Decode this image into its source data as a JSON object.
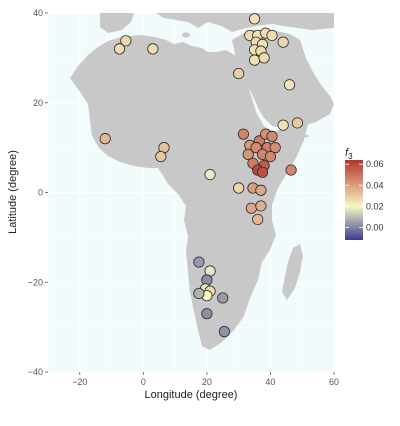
{
  "chart_data": {
    "type": "scatter",
    "xlabel": "Longitude (degree)",
    "ylabel": "Latitude (degree)",
    "xlim": [
      -30,
      60
    ],
    "ylim": [
      -40,
      40
    ],
    "x_ticks": [
      -20,
      0,
      20,
      40,
      60
    ],
    "y_ticks": [
      -40,
      -20,
      0,
      20,
      40
    ],
    "x_tick_labels": [
      "−20",
      "0",
      "20",
      "40",
      "60"
    ],
    "y_tick_labels": [
      "−40",
      "−20",
      "0",
      "20",
      "40"
    ],
    "grid": true,
    "legend": {
      "title": "f",
      "title_subscript": "3",
      "placement": "right",
      "ticks": [
        0.0,
        0.02,
        0.04,
        0.06
      ],
      "tick_labels": [
        "0.00",
        "0.02",
        "0.04",
        "0.06"
      ],
      "range": [
        -0.012,
        0.064
      ]
    },
    "colors": {
      "panel_background": "#f2fbfc",
      "grid": "#ffffff",
      "land": "#c8c8c8",
      "point_outline": "#2b2b2b",
      "low": "#3b3b8f",
      "mid": "#f7f7c4",
      "high": "#b5342d"
    },
    "points": [
      {
        "lon": -5.5,
        "lat": 33.8,
        "f3": 0.027
      },
      {
        "lon": -7.5,
        "lat": 32.0,
        "f3": 0.026
      },
      {
        "lon": 3.0,
        "lat": 32.0,
        "f3": 0.026
      },
      {
        "lon": 35.0,
        "lat": 38.7,
        "f3": 0.025
      },
      {
        "lon": 33.5,
        "lat": 35.0,
        "f3": 0.026
      },
      {
        "lon": 36.0,
        "lat": 35.0,
        "f3": 0.025
      },
      {
        "lon": 38.5,
        "lat": 35.5,
        "f3": 0.026
      },
      {
        "lon": 40.5,
        "lat": 35.0,
        "f3": 0.026
      },
      {
        "lon": 35.5,
        "lat": 33.5,
        "f3": 0.026
      },
      {
        "lon": 37.5,
        "lat": 33.0,
        "f3": 0.025
      },
      {
        "lon": 44.0,
        "lat": 33.5,
        "f3": 0.027
      },
      {
        "lon": 35.0,
        "lat": 31.8,
        "f3": 0.025
      },
      {
        "lon": 37.0,
        "lat": 31.5,
        "f3": 0.026
      },
      {
        "lon": 35.0,
        "lat": 29.5,
        "f3": 0.025
      },
      {
        "lon": 38.0,
        "lat": 30.0,
        "f3": 0.026
      },
      {
        "lon": 30.0,
        "lat": 26.5,
        "f3": 0.029
      },
      {
        "lon": 46.0,
        "lat": 24.0,
        "f3": 0.024
      },
      {
        "lon": 44.0,
        "lat": 15.0,
        "f3": 0.025
      },
      {
        "lon": 48.5,
        "lat": 15.5,
        "f3": 0.03
      },
      {
        "lon": -12.0,
        "lat": 12.0,
        "f3": 0.034
      },
      {
        "lon": 6.5,
        "lat": 10.0,
        "f3": 0.032
      },
      {
        "lon": 5.5,
        "lat": 8.0,
        "f3": 0.031
      },
      {
        "lon": 21.0,
        "lat": 4.0,
        "f3": 0.018
      },
      {
        "lon": 30.0,
        "lat": 1.0,
        "f3": 0.027
      },
      {
        "lon": 31.5,
        "lat": 13.0,
        "f3": 0.046
      },
      {
        "lon": 36.5,
        "lat": 11.5,
        "f3": 0.048
      },
      {
        "lon": 38.5,
        "lat": 13.0,
        "f3": 0.043
      },
      {
        "lon": 40.5,
        "lat": 12.5,
        "f3": 0.045
      },
      {
        "lon": 33.5,
        "lat": 10.5,
        "f3": 0.041
      },
      {
        "lon": 35.5,
        "lat": 10.0,
        "f3": 0.044
      },
      {
        "lon": 39.0,
        "lat": 10.0,
        "f3": 0.047
      },
      {
        "lon": 41.5,
        "lat": 10.0,
        "f3": 0.044
      },
      {
        "lon": 33.0,
        "lat": 8.5,
        "f3": 0.042
      },
      {
        "lon": 37.5,
        "lat": 8.5,
        "f3": 0.046
      },
      {
        "lon": 40.0,
        "lat": 8.0,
        "f3": 0.045
      },
      {
        "lon": 34.5,
        "lat": 6.5,
        "f3": 0.048
      },
      {
        "lon": 38.0,
        "lat": 6.0,
        "f3": 0.055
      },
      {
        "lon": 36.0,
        "lat": 5.0,
        "f3": 0.06
      },
      {
        "lon": 37.5,
        "lat": 4.5,
        "f3": 0.058
      },
      {
        "lon": 46.5,
        "lat": 5.0,
        "f3": 0.045
      },
      {
        "lon": 34.5,
        "lat": 1.0,
        "f3": 0.04
      },
      {
        "lon": 37.0,
        "lat": 0.5,
        "f3": 0.038
      },
      {
        "lon": 34.0,
        "lat": -3.5,
        "f3": 0.038
      },
      {
        "lon": 37.0,
        "lat": -3.0,
        "f3": 0.036
      },
      {
        "lon": 36.0,
        "lat": -6.0,
        "f3": 0.034
      },
      {
        "lon": 17.5,
        "lat": -15.5,
        "f3": 0.004
      },
      {
        "lon": 21.0,
        "lat": -17.5,
        "f3": 0.018
      },
      {
        "lon": 20.0,
        "lat": -19.5,
        "f3": 0.002
      },
      {
        "lon": 19.5,
        "lat": -21.5,
        "f3": 0.024
      },
      {
        "lon": 21.0,
        "lat": -22.0,
        "f3": 0.026
      },
      {
        "lon": 20.0,
        "lat": -23.0,
        "f3": 0.02
      },
      {
        "lon": 17.5,
        "lat": -22.5,
        "f3": 0.008
      },
      {
        "lon": 25.0,
        "lat": -23.5,
        "f3": 0.004
      },
      {
        "lon": 20.0,
        "lat": -27.0,
        "f3": 0.002
      },
      {
        "lon": 25.5,
        "lat": -31.0,
        "f3": 0.003
      }
    ]
  }
}
